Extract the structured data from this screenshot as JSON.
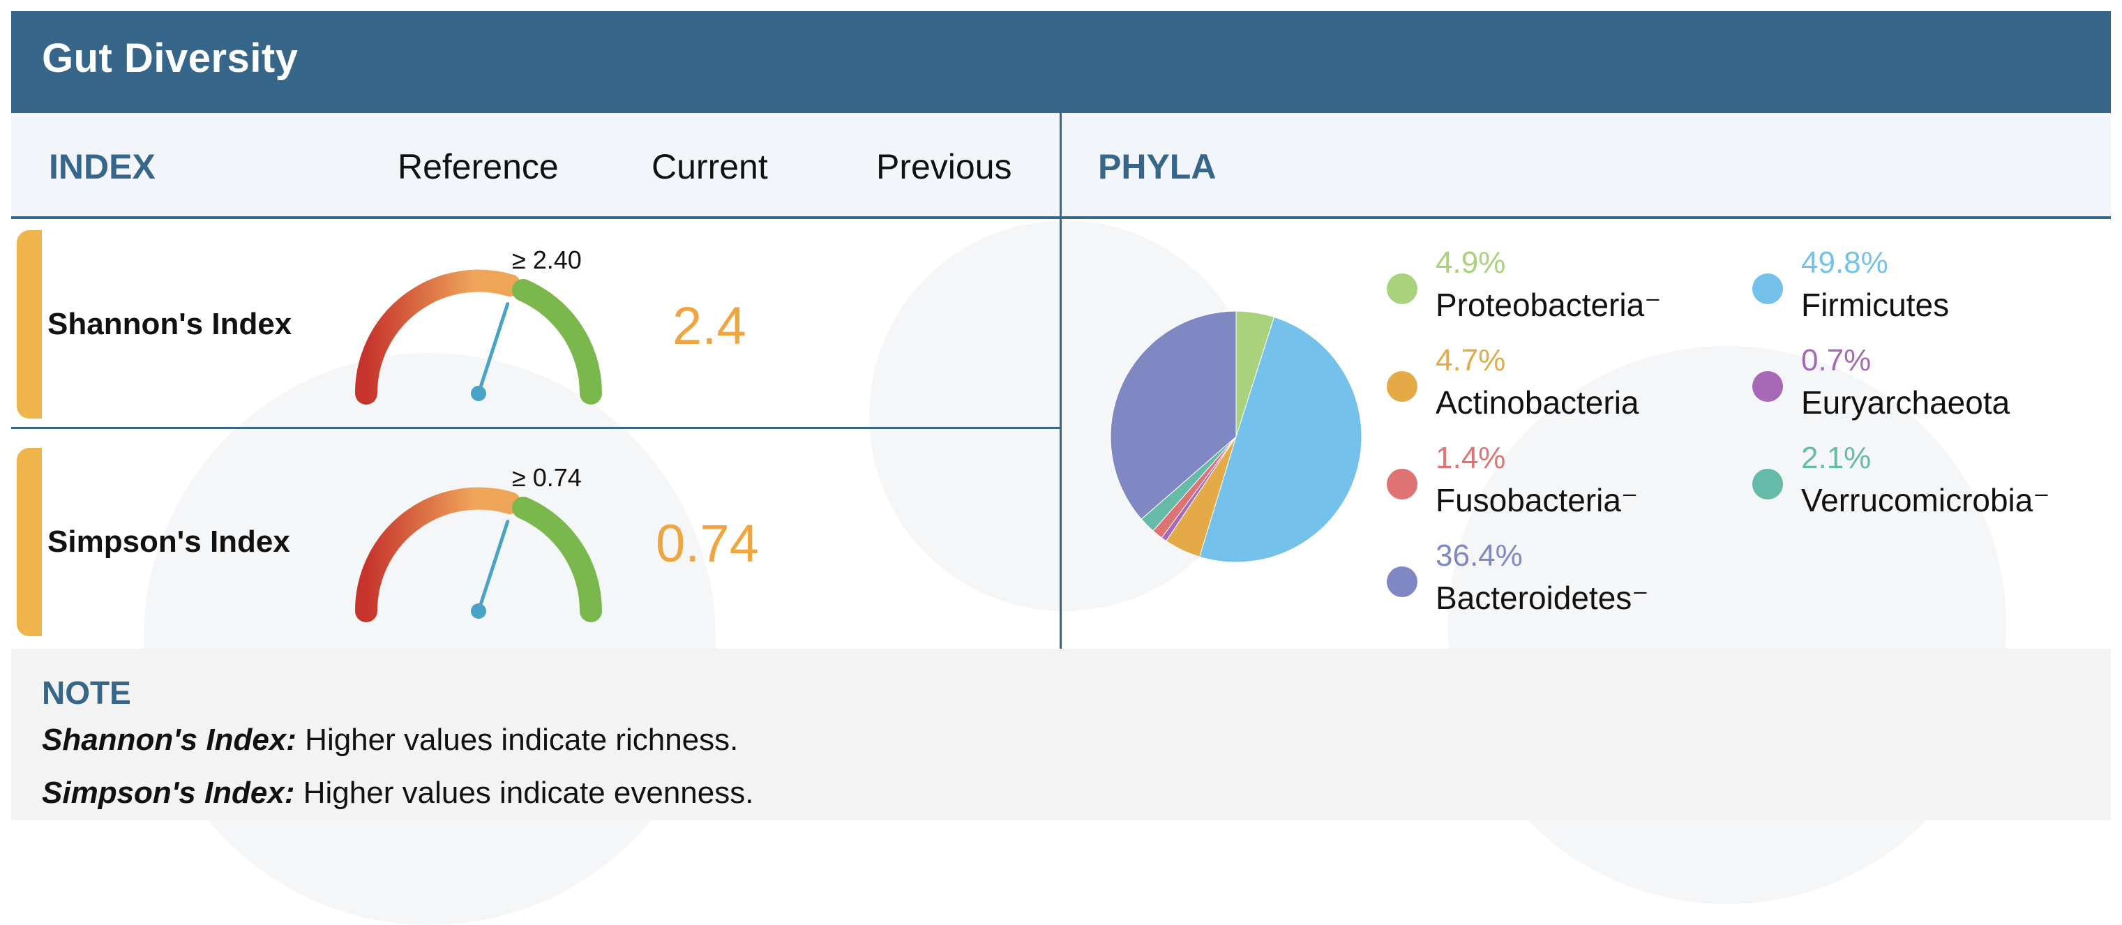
{
  "header": {
    "title": "Gut Diversity"
  },
  "columns": {
    "index": "INDEX",
    "reference": "Reference",
    "current": "Current",
    "previous": "Previous",
    "phyla": "PHYLA"
  },
  "indices": [
    {
      "name": "Shannon's Index",
      "threshold": "≥ 2.40",
      "current": "2.4",
      "gauge_level": 0.6
    },
    {
      "name": "Simpson's Index",
      "threshold": "≥ 0.74",
      "current": "0.74",
      "gauge_level": 0.6
    }
  ],
  "chart_data": {
    "type": "pie",
    "title": "PHYLA",
    "slices": [
      {
        "label": "Proteobacteria",
        "value": 4.9,
        "pct": "4.9%",
        "color": "#a8d27c",
        "mark": "⁻"
      },
      {
        "label": "Firmicutes",
        "value": 49.8,
        "pct": "49.8%",
        "color": "#74c2ec",
        "mark": ""
      },
      {
        "label": "Actinobacteria",
        "value": 4.7,
        "pct": "4.7%",
        "color": "#e5aa48",
        "mark": ""
      },
      {
        "label": "Euryarchaeota",
        "value": 0.7,
        "pct": "0.7%",
        "color": "#a769b7",
        "mark": ""
      },
      {
        "label": "Fusobacteria",
        "value": 1.4,
        "pct": "1.4%",
        "color": "#df7272",
        "mark": "⁻"
      },
      {
        "label": "Verrucomicrobia",
        "value": 2.1,
        "pct": "2.1%",
        "color": "#66bba8",
        "mark": "⁻"
      },
      {
        "label": "Bacteroidetes",
        "value": 36.4,
        "pct": "36.4%",
        "color": "#7f88c3",
        "mark": "⁻"
      }
    ],
    "pie_order": [
      "Proteobacteria",
      "Firmicutes",
      "Actinobacteria",
      "Euryarchaeota",
      "Fusobacteria",
      "Verrucomicrobia",
      "Bacteroidetes"
    ]
  },
  "note": {
    "title": "NOTE",
    "lines": [
      {
        "term": "Shannon's Index:",
        "text": " Higher values indicate richness."
      },
      {
        "term": "Simpson's Index:",
        "text": " Higher values indicate evenness."
      }
    ]
  }
}
